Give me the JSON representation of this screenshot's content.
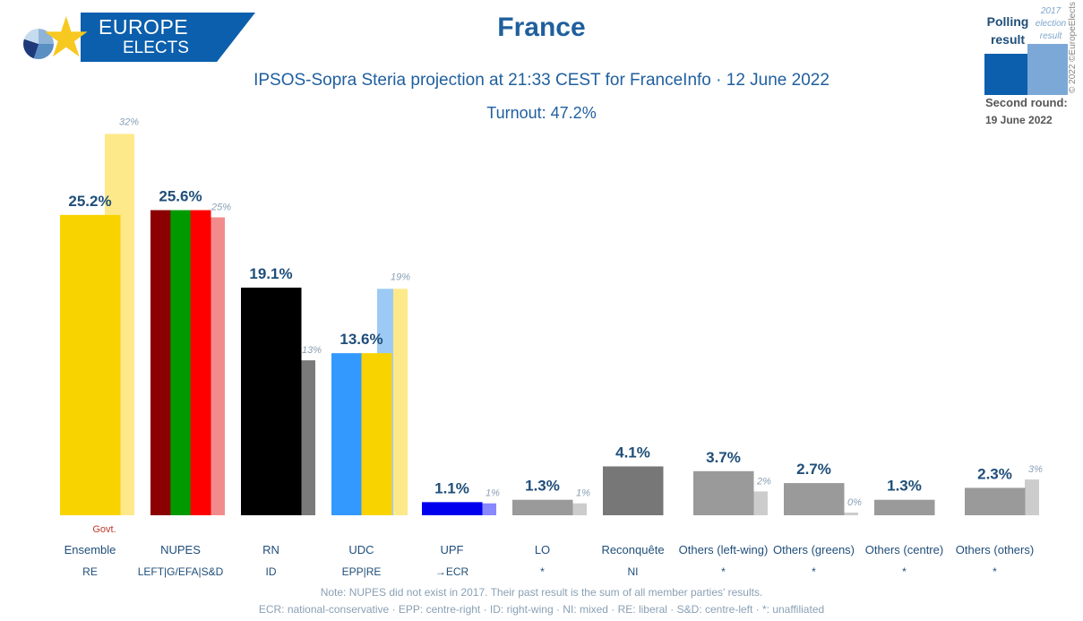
{
  "header": {
    "logo_line1": "EUROPE",
    "logo_line2": "ELECTS",
    "title": "France",
    "subtitle": "IPSOS-Sopra Steria projection at 21:33 CEST for FranceInfo · 12 June 2022",
    "turnout": "Turnout: 47.2%"
  },
  "legend": {
    "polling_label": "Polling result",
    "previous_label": "2017 election result",
    "polling_color": "#0b5fad",
    "previous_color": "#7ba8d6",
    "second_round_label": "Second round:",
    "second_round_date": "19 June 2022",
    "copyright": "© 2022 ©EuropeElects"
  },
  "notes": {
    "note1": "Note: NUPES did not exist in 2017. Their past result is the sum of all member parties' results.",
    "note2": "ECR: national-conservative · EPP: centre-right · ID: right-wing · NI: mixed · RE: liberal · S&D: centre-left · *: unaffiliated"
  },
  "chart_data": {
    "type": "bar",
    "title": "France",
    "subtitle": "IPSOS-Sopra Steria projection at 21:33 CEST for FranceInfo · 12 June 2022",
    "ylim": [
      0,
      33
    ],
    "grid": false,
    "legend": "top-right",
    "categories": [
      "Ensemble",
      "NUPES",
      "RN",
      "UDC",
      "UPF",
      "LO",
      "Reconquête",
      "Others (left-wing)",
      "Others (greens)",
      "Others (centre)",
      "Others (others)"
    ],
    "groups": [
      "RE",
      "LEFT|G/EFA|S&D",
      "ID",
      "EPP|RE",
      "→ECR",
      "*",
      "NI",
      "*",
      "*",
      "*",
      "*"
    ],
    "annotations": [
      {
        "category": "Ensemble",
        "text": "Govt."
      }
    ],
    "series": [
      {
        "name": "Polling result",
        "values": [
          25.2,
          25.6,
          19.1,
          13.6,
          1.1,
          1.3,
          4.1,
          3.7,
          2.7,
          1.3,
          2.3
        ],
        "labels": [
          "25.2%",
          "25.6%",
          "19.1%",
          "13.6%",
          "1.1%",
          "1.3%",
          "4.1%",
          "3.7%",
          "2.7%",
          "1.3%",
          "2.3%"
        ]
      },
      {
        "name": "2017 election result",
        "values": [
          32,
          25,
          13,
          19,
          1,
          1,
          null,
          2,
          0,
          null,
          3
        ],
        "labels": [
          "32%",
          "25%",
          "13%",
          "19%",
          "1%",
          "1%",
          "",
          "2%",
          "0%",
          "",
          "3%"
        ]
      }
    ],
    "colors": {
      "current": [
        [
          "#f9d300"
        ],
        [
          "#8b0000",
          "#009a00",
          "#ff0000"
        ],
        [
          "#000000"
        ],
        [
          "#3399ff",
          "#f9d300"
        ],
        [
          "#0000ee"
        ],
        [
          "#9a9a9a"
        ],
        [
          "#777777"
        ],
        [
          "#9a9a9a"
        ],
        [
          "#9a9a9a"
        ],
        [
          "#9a9a9a"
        ],
        [
          "#9a9a9a"
        ]
      ],
      "previous": [
        [
          "#fde98a"
        ],
        [
          "#f28c8c"
        ],
        [
          "#7a7a7a"
        ],
        [
          "#9ccaf5",
          "#fde98a"
        ],
        [
          "#8888ff"
        ],
        [
          "#cccccc"
        ],
        [],
        [
          "#cccccc"
        ],
        [
          "#cccccc"
        ],
        [],
        [
          "#cccccc"
        ]
      ]
    }
  }
}
